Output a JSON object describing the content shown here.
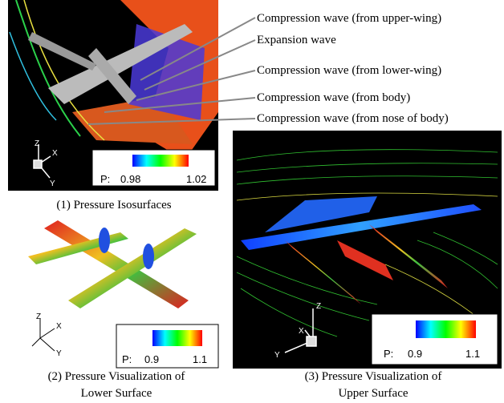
{
  "annotations": [
    "Compression wave (from upper-wing)",
    "Expansion wave",
    "Compression wave (from lower-wing)",
    "Compression wave (from body)",
    "Compression wave (from nose of body)"
  ],
  "panels": [
    {
      "caption": [
        "(1) Pressure Isosurfaces"
      ],
      "colorbar": {
        "prefix": "P:",
        "min": 0.98,
        "max": 1.02
      },
      "axes": [
        "Z",
        "X",
        "Y"
      ]
    },
    {
      "caption": [
        "(2) Pressure Visualization of",
        "Lower Surface"
      ],
      "colorbar": {
        "prefix": "P:",
        "min": 0.9,
        "max": 1.1
      },
      "axes": [
        "Z",
        "X",
        "Y"
      ]
    },
    {
      "caption": [
        "(3) Pressure Visualization of",
        "Upper Surface"
      ],
      "colorbar": {
        "prefix": "P:",
        "min": 0.9,
        "max": 1.1
      },
      "axes": [
        "Z",
        "X",
        "Y"
      ]
    }
  ]
}
